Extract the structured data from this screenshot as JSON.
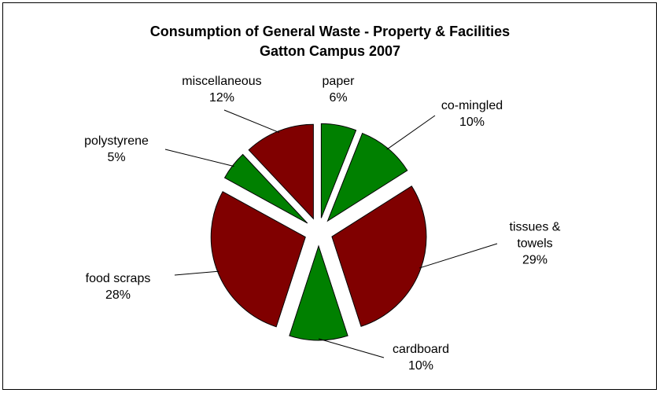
{
  "chart_data": {
    "type": "pie",
    "title": "Consumption of General Waste - Property & Facilities",
    "subtitle": "Gatton Campus 2007",
    "categories": [
      "paper",
      "co-mingled",
      "tissues & towels",
      "cardboard",
      "food scraps",
      "polystyrene",
      "miscellaneous"
    ],
    "values": [
      6,
      10,
      29,
      10,
      28,
      5,
      12
    ],
    "value_labels": [
      "6%",
      "10%",
      "29%",
      "10%",
      "28%",
      "5%",
      "12%"
    ],
    "colors": [
      "#008000",
      "#008000",
      "#800000",
      "#008000",
      "#800000",
      "#008000",
      "#800000"
    ]
  }
}
